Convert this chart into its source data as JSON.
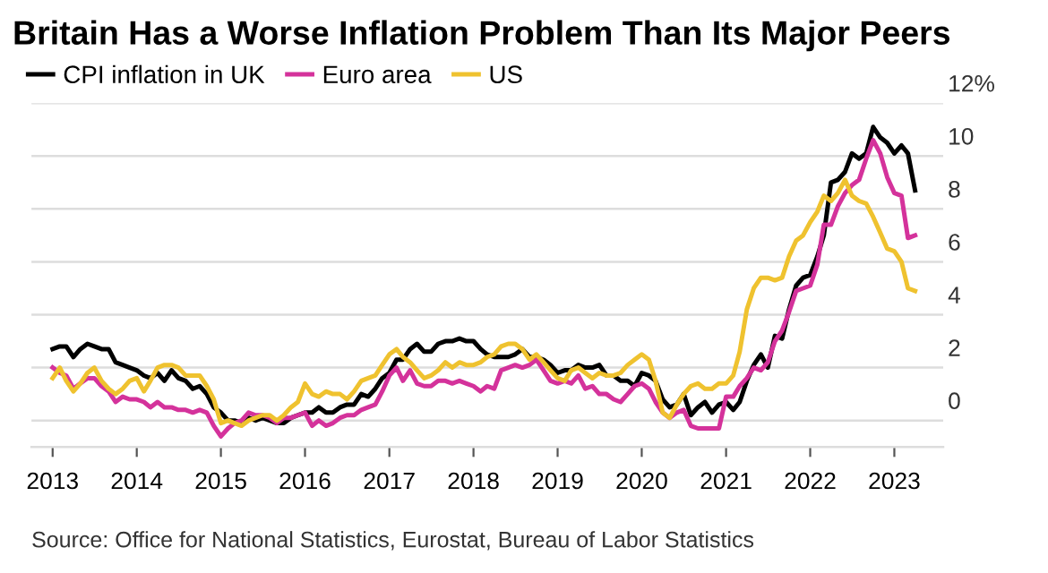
{
  "chart_data": {
    "type": "line",
    "title": "Britain Has a Worse Inflation Problem Than Its Major Peers",
    "x": [
      "2013-01",
      "2013-02",
      "2013-03",
      "2013-04",
      "2013-05",
      "2013-06",
      "2013-07",
      "2013-08",
      "2013-09",
      "2013-10",
      "2013-11",
      "2013-12",
      "2014-01",
      "2014-02",
      "2014-03",
      "2014-04",
      "2014-05",
      "2014-06",
      "2014-07",
      "2014-08",
      "2014-09",
      "2014-10",
      "2014-11",
      "2014-12",
      "2015-01",
      "2015-02",
      "2015-03",
      "2015-04",
      "2015-05",
      "2015-06",
      "2015-07",
      "2015-08",
      "2015-09",
      "2015-10",
      "2015-11",
      "2015-12",
      "2016-01",
      "2016-02",
      "2016-03",
      "2016-04",
      "2016-05",
      "2016-06",
      "2016-07",
      "2016-08",
      "2016-09",
      "2016-10",
      "2016-11",
      "2016-12",
      "2017-01",
      "2017-02",
      "2017-03",
      "2017-04",
      "2017-05",
      "2017-06",
      "2017-07",
      "2017-08",
      "2017-09",
      "2017-10",
      "2017-11",
      "2017-12",
      "2018-01",
      "2018-02",
      "2018-03",
      "2018-04",
      "2018-05",
      "2018-06",
      "2018-07",
      "2018-08",
      "2018-09",
      "2018-10",
      "2018-11",
      "2018-12",
      "2019-01",
      "2019-02",
      "2019-03",
      "2019-04",
      "2019-05",
      "2019-06",
      "2019-07",
      "2019-08",
      "2019-09",
      "2019-10",
      "2019-11",
      "2019-12",
      "2020-01",
      "2020-02",
      "2020-03",
      "2020-04",
      "2020-05",
      "2020-06",
      "2020-07",
      "2020-08",
      "2020-09",
      "2020-10",
      "2020-11",
      "2020-12",
      "2021-01",
      "2021-02",
      "2021-03",
      "2021-04",
      "2021-05",
      "2021-06",
      "2021-07",
      "2021-08",
      "2021-09",
      "2021-10",
      "2021-11",
      "2021-12",
      "2022-01",
      "2022-02",
      "2022-03",
      "2022-04",
      "2022-05",
      "2022-06",
      "2022-07",
      "2022-08",
      "2022-09",
      "2022-10",
      "2022-11",
      "2022-12",
      "2023-01",
      "2023-02",
      "2023-03",
      "2023-04"
    ],
    "series": [
      {
        "name": "CPI inflation in UK",
        "color": "#000000",
        "values": [
          2.7,
          2.8,
          2.8,
          2.4,
          2.7,
          2.9,
          2.8,
          2.7,
          2.7,
          2.2,
          2.1,
          2.0,
          1.9,
          1.7,
          1.6,
          1.8,
          1.5,
          1.9,
          1.6,
          1.5,
          1.2,
          1.3,
          1.0,
          0.5,
          0.3,
          0.0,
          0.0,
          -0.1,
          0.1,
          0.0,
          0.1,
          0.0,
          -0.1,
          -0.1,
          0.1,
          0.2,
          0.3,
          0.3,
          0.5,
          0.3,
          0.3,
          0.5,
          0.6,
          0.6,
          1.0,
          0.9,
          1.2,
          1.6,
          1.8,
          2.3,
          2.3,
          2.7,
          2.9,
          2.6,
          2.6,
          2.9,
          3.0,
          3.0,
          3.1,
          3.0,
          3.0,
          2.7,
          2.5,
          2.4,
          2.4,
          2.4,
          2.5,
          2.7,
          2.4,
          2.4,
          2.3,
          2.1,
          1.8,
          1.9,
          1.9,
          2.1,
          2.0,
          2.0,
          2.1,
          1.7,
          1.7,
          1.5,
          1.5,
          1.3,
          1.8,
          1.7,
          1.5,
          0.8,
          0.5,
          0.6,
          1.0,
          0.2,
          0.5,
          0.7,
          0.3,
          0.6,
          0.7,
          0.4,
          0.7,
          1.5,
          2.1,
          2.5,
          2.0,
          3.2,
          3.1,
          4.2,
          5.1,
          5.4,
          5.5,
          6.2,
          7.0,
          9.0,
          9.1,
          9.4,
          10.1,
          9.9,
          10.1,
          11.1,
          10.7,
          10.5,
          10.1,
          10.4,
          10.1,
          8.7
        ]
      },
      {
        "name": "Euro area",
        "color": "#d4329b",
        "values": [
          2.0,
          1.8,
          1.7,
          1.2,
          1.4,
          1.6,
          1.6,
          1.3,
          1.1,
          0.7,
          0.9,
          0.8,
          0.8,
          0.7,
          0.5,
          0.7,
          0.5,
          0.5,
          0.4,
          0.4,
          0.3,
          0.4,
          0.3,
          -0.2,
          -0.6,
          -0.3,
          -0.1,
          0.0,
          0.3,
          0.2,
          0.2,
          0.1,
          -0.1,
          0.1,
          0.1,
          0.2,
          0.3,
          -0.2,
          0.0,
          -0.2,
          -0.1,
          0.1,
          0.2,
          0.2,
          0.4,
          0.5,
          0.6,
          1.1,
          1.7,
          2.0,
          1.5,
          1.9,
          1.4,
          1.3,
          1.3,
          1.5,
          1.5,
          1.4,
          1.5,
          1.4,
          1.3,
          1.1,
          1.3,
          1.2,
          1.9,
          2.0,
          2.1,
          2.0,
          2.1,
          2.3,
          1.9,
          1.5,
          1.4,
          1.5,
          1.4,
          1.7,
          1.2,
          1.3,
          1.0,
          1.0,
          0.8,
          0.7,
          1.0,
          1.3,
          1.4,
          1.2,
          0.7,
          0.3,
          0.1,
          0.3,
          0.4,
          -0.2,
          -0.3,
          -0.3,
          -0.3,
          -0.3,
          0.9,
          0.9,
          1.3,
          1.6,
          2.0,
          1.9,
          2.2,
          3.0,
          3.4,
          4.1,
          4.9,
          5.0,
          5.1,
          5.9,
          7.4,
          7.4,
          8.1,
          8.6,
          8.9,
          9.1,
          9.9,
          10.6,
          10.1,
          9.2,
          8.6,
          8.5,
          6.9,
          7.0
        ]
      },
      {
        "name": "US",
        "color": "#efc22f",
        "values": [
          1.6,
          2.0,
          1.5,
          1.1,
          1.4,
          1.8,
          2.0,
          1.5,
          1.2,
          1.0,
          1.2,
          1.5,
          1.6,
          1.1,
          1.5,
          2.0,
          2.1,
          2.1,
          2.0,
          1.7,
          1.7,
          1.7,
          1.3,
          0.8,
          -0.1,
          0.0,
          -0.1,
          -0.2,
          0.0,
          0.1,
          0.2,
          0.2,
          0.0,
          0.2,
          0.5,
          0.7,
          1.4,
          1.0,
          0.9,
          1.1,
          1.0,
          1.0,
          0.8,
          1.1,
          1.5,
          1.6,
          1.7,
          2.1,
          2.5,
          2.7,
          2.4,
          2.2,
          1.9,
          1.6,
          1.7,
          1.9,
          2.2,
          2.0,
          2.2,
          2.1,
          2.1,
          2.2,
          2.4,
          2.5,
          2.8,
          2.9,
          2.9,
          2.7,
          2.3,
          2.5,
          2.2,
          1.9,
          1.6,
          1.5,
          1.9,
          2.0,
          1.8,
          1.6,
          1.8,
          1.7,
          1.7,
          1.8,
          2.1,
          2.3,
          2.5,
          2.3,
          1.5,
          0.3,
          0.1,
          0.6,
          1.0,
          1.3,
          1.4,
          1.2,
          1.2,
          1.4,
          1.4,
          1.7,
          2.6,
          4.2,
          5.0,
          5.4,
          5.4,
          5.3,
          5.4,
          6.2,
          6.8,
          7.0,
          7.5,
          7.9,
          8.5,
          8.3,
          8.6,
          9.1,
          8.5,
          8.3,
          8.2,
          7.7,
          7.1,
          6.5,
          6.4,
          6.0,
          5.0,
          4.9
        ]
      }
    ],
    "xlim": [
      "2012-10",
      "2023-08"
    ],
    "xticks": [
      {
        "value": "2013-01",
        "label": "2013"
      },
      {
        "value": "2014-01",
        "label": "2014"
      },
      {
        "value": "2015-01",
        "label": "2015"
      },
      {
        "value": "2016-01",
        "label": "2016"
      },
      {
        "value": "2017-01",
        "label": "2017"
      },
      {
        "value": "2018-01",
        "label": "2018"
      },
      {
        "value": "2019-01",
        "label": "2019"
      },
      {
        "value": "2020-01",
        "label": "2020"
      },
      {
        "value": "2021-01",
        "label": "2021"
      },
      {
        "value": "2022-01",
        "label": "2022"
      },
      {
        "value": "2023-01",
        "label": "2023"
      }
    ],
    "ylim": [
      -1,
      12
    ],
    "yticks": [
      0,
      2,
      4,
      6,
      8,
      10,
      {
        "value": 12,
        "label": "12%"
      }
    ],
    "grid": "y",
    "legend": "top left",
    "marker": "none",
    "line_style": "solid",
    "annotations": [
      "Source: Office for National Statistics, Eurostat, Bureau of Labor Statistics"
    ]
  }
}
